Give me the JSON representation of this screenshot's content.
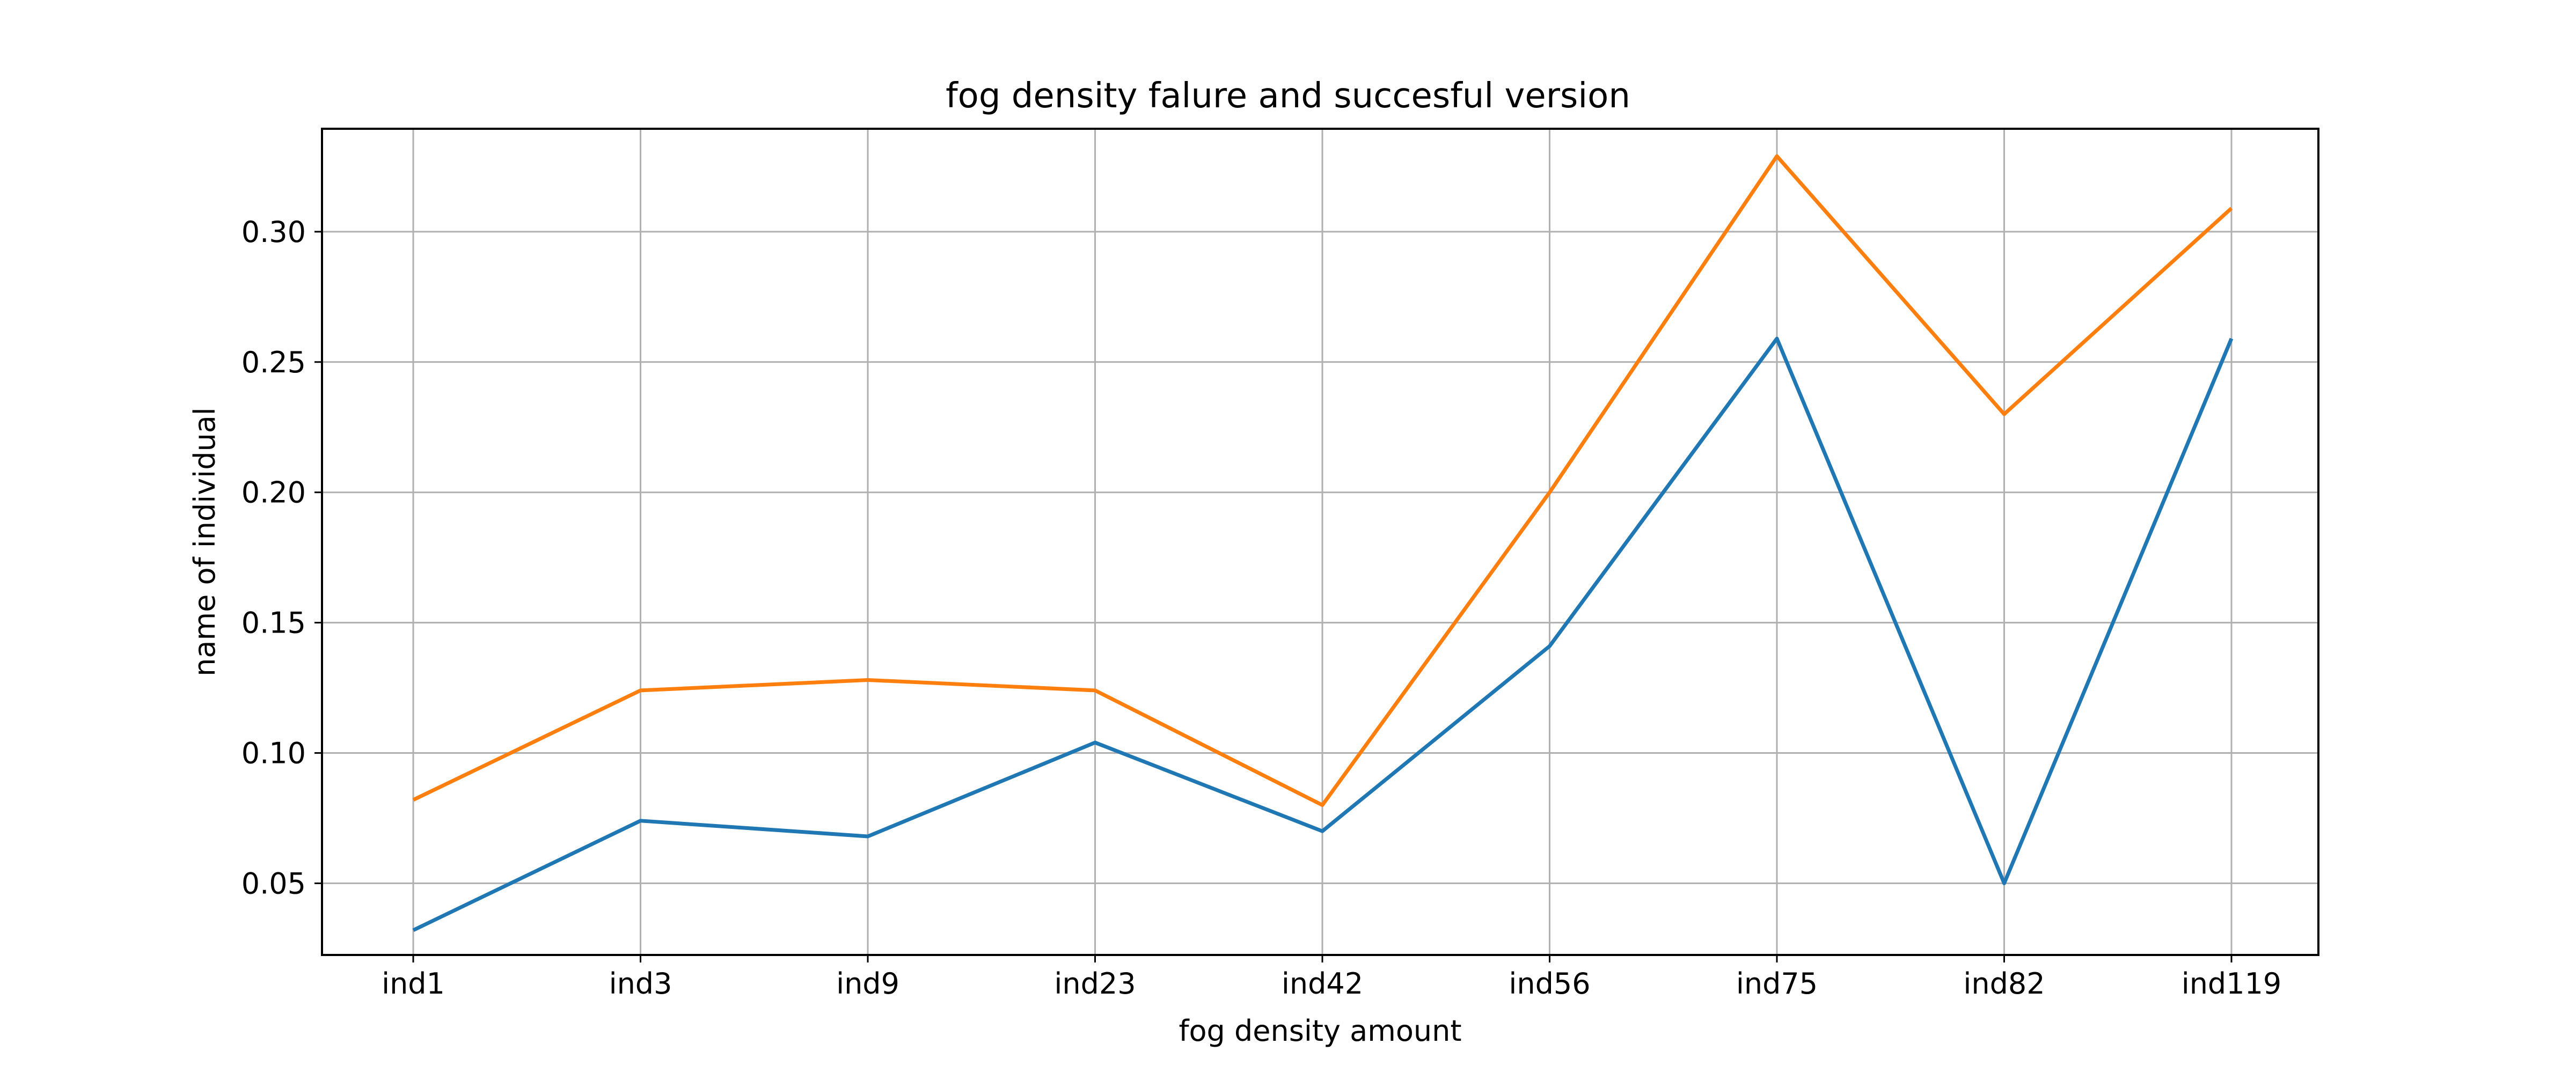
{
  "chart_data": {
    "type": "line",
    "title": "fog density falure and succesful version",
    "xlabel": "fog density amount",
    "ylabel": "name of individual",
    "categories": [
      "ind1",
      "ind3",
      "ind9",
      "ind23",
      "ind42",
      "ind56",
      "ind75",
      "ind82",
      "ind119"
    ],
    "series": [
      {
        "values": [
          0.032,
          0.074,
          0.068,
          0.104,
          0.07,
          0.141,
          0.259,
          0.05,
          0.259
        ],
        "color": "#1f77b4"
      },
      {
        "values": [
          0.082,
          0.124,
          0.128,
          0.124,
          0.08,
          0.2,
          0.329,
          0.23,
          0.309
        ],
        "color": "#ff7f0e"
      }
    ],
    "ylim": [
      0.0225,
      0.3395
    ],
    "yticks": [
      0.05,
      0.1,
      0.15,
      0.2,
      0.25,
      0.3
    ],
    "ytick_labels": [
      "0.05",
      "0.10",
      "0.15",
      "0.20",
      "0.25",
      "0.30"
    ],
    "grid": true,
    "legend": "none"
  }
}
